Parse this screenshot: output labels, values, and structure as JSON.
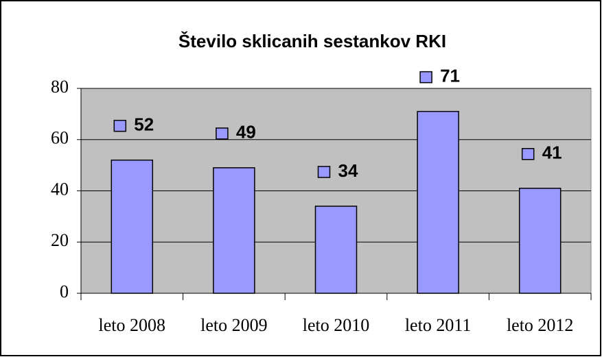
{
  "chart_data": {
    "type": "bar",
    "title": "Število sklicanih sestankov RKI",
    "categories": [
      "leto 2008",
      "leto 2009",
      "leto 2010",
      "leto 2011",
      "leto 2012"
    ],
    "values": [
      52,
      49,
      34,
      71,
      41
    ],
    "color": "#9999ff",
    "ylim": [
      0,
      80
    ],
    "yticks": [
      0,
      20,
      40,
      60,
      80
    ],
    "grid": true
  }
}
